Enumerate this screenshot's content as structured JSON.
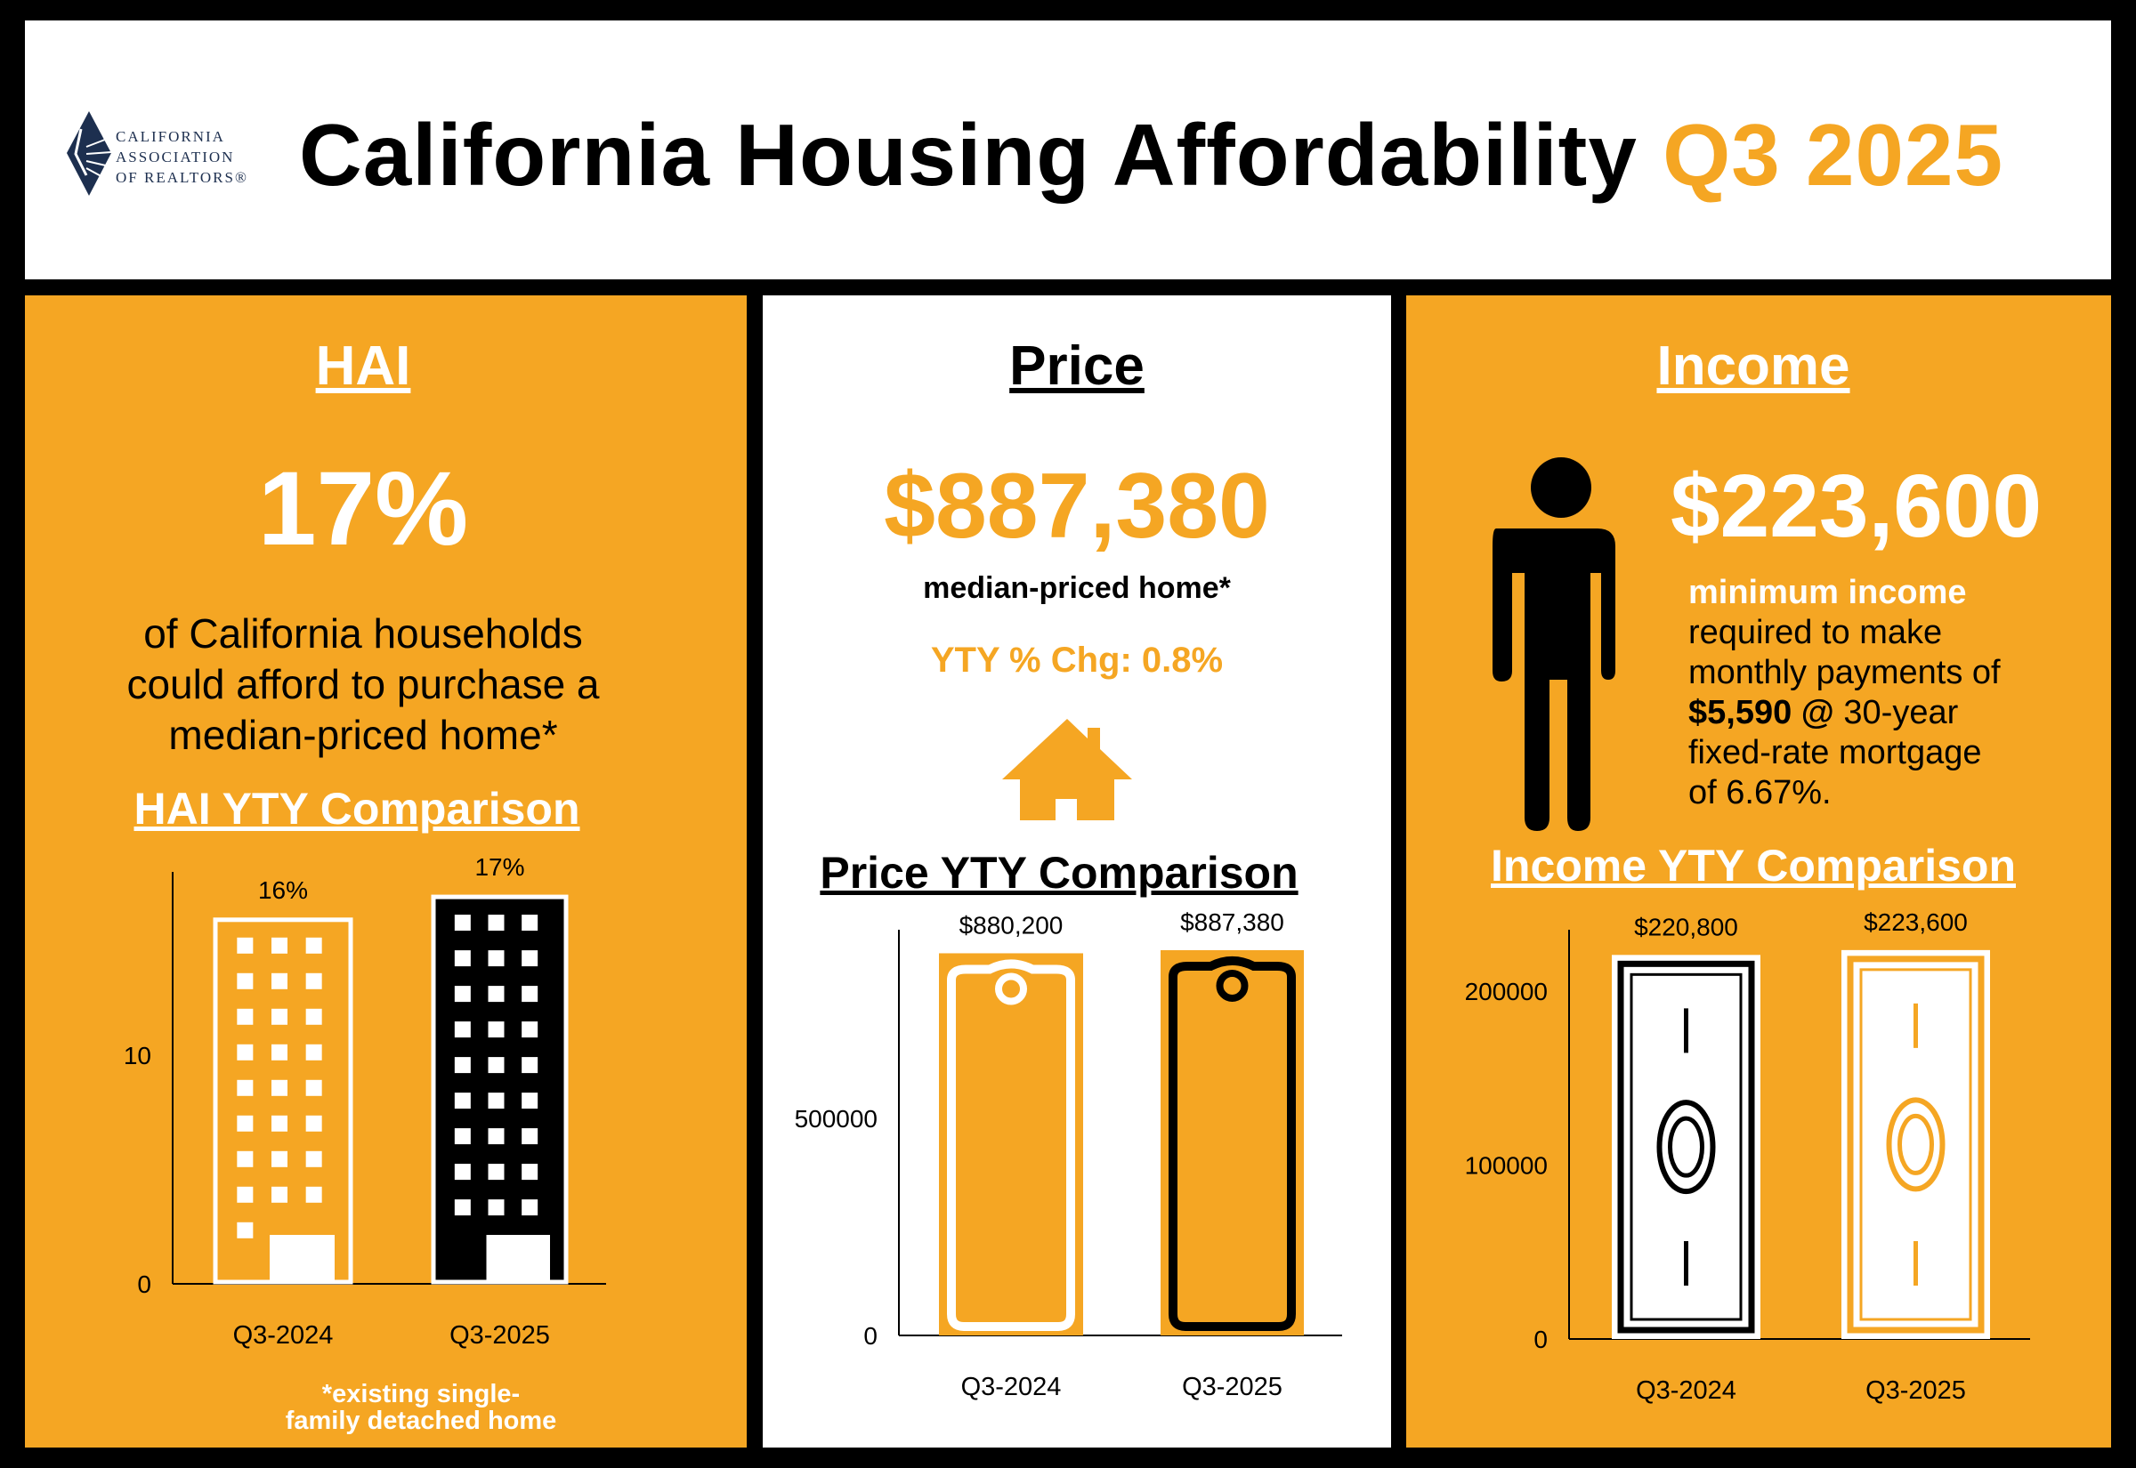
{
  "header": {
    "logo_lines": [
      "CALIFORNIA",
      "ASSOCIATION",
      "OF REALTORS®"
    ],
    "title": "California Housing Affordability",
    "period": "Q3 2025"
  },
  "colors": {
    "orange": "#F5A623",
    "black": "#000000",
    "white": "#FFFFFF",
    "logo_navy": "#1d2f4f"
  },
  "hai": {
    "heading": "HAI",
    "value": "17%",
    "desc": [
      "of California households",
      "could afford to purchase a",
      "median-priced home*"
    ],
    "comparison_heading": "HAI YTY Comparison",
    "footnote": [
      "*existing single-",
      "family detached home"
    ]
  },
  "price": {
    "heading": "Price",
    "value": "$887,380",
    "desc": "median-priced home*",
    "yty": "YTY % Chg: 0.8%",
    "comparison_heading": "Price YTY Comparison",
    "icon": "house-icon"
  },
  "income": {
    "heading": "Income",
    "value": "$223,600",
    "desc_highlight": "minimum income",
    "desc_lines": [
      "required to make",
      "monthly payments of"
    ],
    "payment": "$5,590 @",
    "term": " 30-year",
    "desc_tail": [
      "fixed-rate mortgage",
      "of 6.67%."
    ],
    "icon": "person-icon",
    "comparison_heading": "Income YTY Comparison"
  },
  "chart_data": [
    {
      "type": "bar",
      "categories": [
        "Q3-2024",
        "Q3-2025"
      ],
      "values": [
        16,
        17
      ],
      "data_labels": [
        "16%",
        "17%"
      ],
      "yticks": [
        "0",
        "10"
      ],
      "ylim": [
        0,
        18
      ],
      "mark_icon": "building-icon"
    },
    {
      "type": "bar",
      "categories": [
        "Q3-2024",
        "Q3-2025"
      ],
      "values": [
        880200,
        887380
      ],
      "data_labels": [
        "$880,200",
        "$887,380"
      ],
      "yticks": [
        "0",
        "500000"
      ],
      "ylim": [
        0,
        950000
      ],
      "mark_icon": "price-tag-icon"
    },
    {
      "type": "bar",
      "categories": [
        "Q3-2024",
        "Q3-2025"
      ],
      "values": [
        220800,
        223600
      ],
      "data_labels": [
        "$220,800",
        "$223,600"
      ],
      "yticks": [
        "0",
        "100000",
        "200000"
      ],
      "ylim": [
        0,
        240000
      ],
      "mark_icon": "dollar-bill-icon"
    }
  ]
}
